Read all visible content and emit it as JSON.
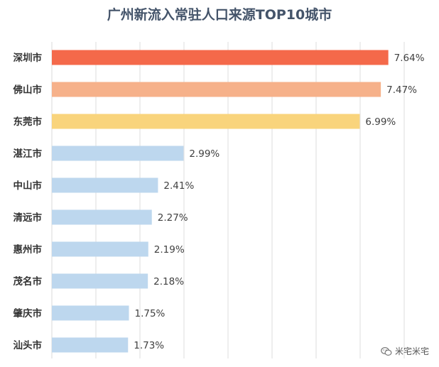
{
  "chart_data": {
    "type": "bar",
    "orientation": "horizontal",
    "title": "广州新流入常驻人口来源TOP10城市",
    "categories": [
      "深圳市",
      "佛山市",
      "东莞市",
      "湛江市",
      "中山市",
      "清远市",
      "惠州市",
      "茂名市",
      "肇庆市",
      "汕头市"
    ],
    "values": [
      7.64,
      7.47,
      6.99,
      2.99,
      2.41,
      2.27,
      2.19,
      2.18,
      1.75,
      1.73
    ],
    "value_labels": [
      "7.64%",
      "7.47%",
      "6.99%",
      "2.99%",
      "2.41%",
      "2.27%",
      "2.19%",
      "2.18%",
      "1.75%",
      "1.73%"
    ],
    "colors": [
      "#f4694a",
      "#f6b18a",
      "#f9d47c",
      "#bdd7ee",
      "#bdd7ee",
      "#bdd7ee",
      "#bdd7ee",
      "#bdd7ee",
      "#bdd7ee",
      "#bdd7ee"
    ],
    "xlim": [
      0,
      8
    ],
    "grid": true,
    "xlabel": "",
    "ylabel": ""
  },
  "watermark": {
    "text": "米宅米宅",
    "icon": "wechat-icon"
  }
}
